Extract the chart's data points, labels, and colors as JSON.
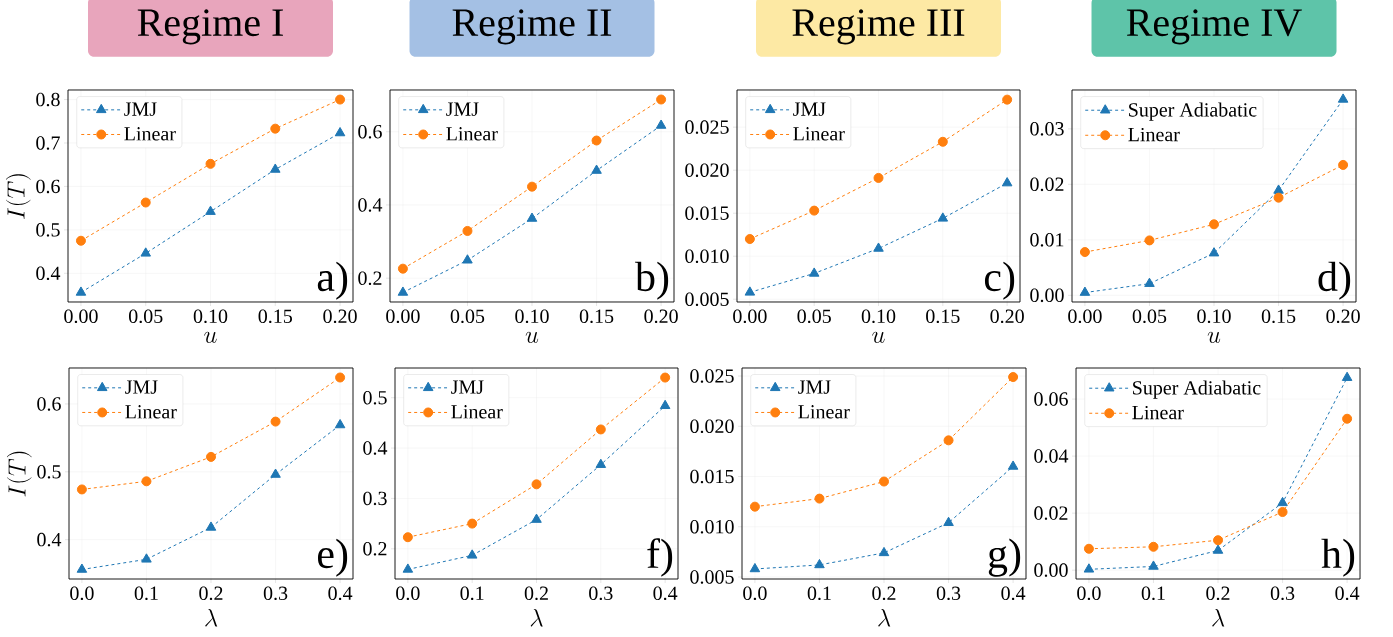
{
  "chart_data": [
    {
      "type": "line",
      "title": "Regime I",
      "xlabel": "u",
      "ylabel": "I(T)",
      "x": [
        0,
        0.05,
        0.1,
        0.15,
        0.2
      ],
      "series": [
        {
          "name": "JMJ",
          "color": "#1f77b4",
          "marker": "triangle",
          "values": [
            0.356,
            0.446,
            0.542,
            0.639,
            0.723
          ]
        },
        {
          "name": "Linear",
          "color": "#ff7f0e",
          "marker": "circle",
          "values": [
            0.475,
            0.563,
            0.652,
            0.733,
            0.8
          ]
        }
      ],
      "xlim": [
        -0.01,
        0.21
      ],
      "ylim": [
        0.334,
        0.822
      ],
      "xticks": [
        {
          "value": 0,
          "label": "0.00"
        },
        0.05,
        {
          "value": 0.1,
          "label": "0.10"
        },
        0.15,
        {
          "value": 0.2,
          "label": "0.20"
        }
      ],
      "yticks": [
        0.4,
        0.5,
        0.6,
        0.7,
        0.8
      ],
      "grid": true,
      "legend": "top left",
      "line_style": "dashed",
      "annotations": [
        "a)"
      ]
    },
    {
      "type": "line",
      "title": "Regime II",
      "xlabel": "u",
      "x": [
        0,
        0.05,
        0.1,
        0.15,
        0.2
      ],
      "series": [
        {
          "name": "JMJ",
          "color": "#1f77b4",
          "marker": "triangle",
          "values": [
            0.161,
            0.249,
            0.363,
            0.494,
            0.617
          ]
        },
        {
          "name": "Linear",
          "color": "#ff7f0e",
          "marker": "circle",
          "values": [
            0.226,
            0.329,
            0.45,
            0.576,
            0.688
          ]
        }
      ],
      "xlim": [
        -0.01,
        0.21
      ],
      "ylim": [
        0.135,
        0.714
      ],
      "xticks": [
        {
          "value": 0,
          "label": "0.00"
        },
        0.05,
        {
          "value": 0.1,
          "label": "0.10"
        },
        0.15,
        {
          "value": 0.2,
          "label": "0.20"
        }
      ],
      "yticks": [
        0.2,
        0.4,
        0.6
      ],
      "grid": true,
      "legend": "top left",
      "line_style": "dashed",
      "annotations": [
        "b)"
      ]
    },
    {
      "type": "line",
      "title": "Regime III",
      "xlabel": "u",
      "x": [
        0,
        0.05,
        0.1,
        0.15,
        0.2
      ],
      "series": [
        {
          "name": "JMJ",
          "color": "#1f77b4",
          "marker": "triangle",
          "values": [
            0.0058,
            0.008,
            0.0109,
            0.0144,
            0.0185
          ]
        },
        {
          "name": "Linear",
          "color": "#ff7f0e",
          "marker": "circle",
          "values": [
            0.012,
            0.0153,
            0.0191,
            0.0233,
            0.0282
          ]
        }
      ],
      "xlim": [
        -0.01,
        0.21
      ],
      "ylim": [
        0.00468,
        0.02932
      ],
      "xticks": [
        {
          "value": 0,
          "label": "0.00"
        },
        0.05,
        {
          "value": 0.1,
          "label": "0.10"
        },
        0.15,
        {
          "value": 0.2,
          "label": "0.20"
        }
      ],
      "yticks": [
        0.005,
        {
          "value": 0.01,
          "label": "0.010"
        },
        0.015,
        {
          "value": 0.02,
          "label": "0.020"
        },
        0.025
      ],
      "grid": true,
      "legend": "top left",
      "line_style": "dashed",
      "annotations": [
        "c)"
      ]
    },
    {
      "type": "line",
      "title": "Regime IV",
      "xlabel": "u",
      "x": [
        0,
        0.05,
        0.1,
        0.15,
        0.2
      ],
      "series": [
        {
          "name": "Super Adiabatic",
          "color": "#1f77b4",
          "marker": "triangle",
          "values": [
            0.0005,
            0.0021,
            0.0076,
            0.0189,
            0.0353
          ]
        },
        {
          "name": "Linear",
          "color": "#ff7f0e",
          "marker": "circle",
          "values": [
            0.0078,
            0.0099,
            0.0128,
            0.0176,
            0.0235
          ]
        }
      ],
      "xlim": [
        -0.01,
        0.21
      ],
      "ylim": [
        -0.0012,
        0.037
      ],
      "xticks": [
        {
          "value": 0,
          "label": "0.00"
        },
        0.05,
        {
          "value": 0.1,
          "label": "0.10"
        },
        0.15,
        {
          "value": 0.2,
          "label": "0.20"
        }
      ],
      "yticks": [
        {
          "value": 0,
          "label": "0.00"
        },
        0.01,
        0.02,
        0.03
      ],
      "grid": true,
      "legend": "top left",
      "line_style": "dashed",
      "annotations": [
        "d)"
      ]
    },
    {
      "type": "line",
      "xlabel": "\\lambda",
      "ylabel": "I(T)",
      "x": [
        0,
        0.1,
        0.2,
        0.3,
        0.4
      ],
      "series": [
        {
          "name": "JMJ",
          "color": "#1f77b4",
          "marker": "triangle",
          "values": [
            0.356,
            0.371,
            0.418,
            0.496,
            0.569
          ]
        },
        {
          "name": "Linear",
          "color": "#ff7f0e",
          "marker": "circle",
          "values": [
            0.474,
            0.486,
            0.522,
            0.574,
            0.639
          ]
        }
      ],
      "xlim": [
        -0.02,
        0.42
      ],
      "ylim": [
        0.342,
        0.653
      ],
      "xticks": [
        {
          "value": 0,
          "label": "0.0"
        },
        0.1,
        0.2,
        0.3,
        0.4
      ],
      "yticks": [
        0.4,
        0.5,
        0.6
      ],
      "grid": true,
      "legend": "top left",
      "line_style": "dashed",
      "annotations": [
        "e)"
      ]
    },
    {
      "type": "line",
      "xlabel": "\\lambda",
      "x": [
        0,
        0.1,
        0.2,
        0.3,
        0.4
      ],
      "series": [
        {
          "name": "JMJ",
          "color": "#1f77b4",
          "marker": "triangle",
          "values": [
            0.159,
            0.187,
            0.258,
            0.367,
            0.484
          ]
        },
        {
          "name": "Linear",
          "color": "#ff7f0e",
          "marker": "circle",
          "values": [
            0.223,
            0.25,
            0.328,
            0.437,
            0.54
          ]
        }
      ],
      "xlim": [
        -0.02,
        0.42
      ],
      "ylim": [
        0.14,
        0.559
      ],
      "xticks": [
        {
          "value": 0,
          "label": "0.0"
        },
        0.1,
        0.2,
        0.3,
        0.4
      ],
      "yticks": [
        0.2,
        0.3,
        0.4,
        0.5
      ],
      "grid": true,
      "legend": "top left",
      "line_style": "dashed",
      "annotations": [
        "f)"
      ]
    },
    {
      "type": "line",
      "xlabel": "\\lambda",
      "x": [
        0,
        0.1,
        0.2,
        0.3,
        0.4
      ],
      "series": [
        {
          "name": "JMJ",
          "color": "#1f77b4",
          "marker": "triangle",
          "values": [
            0.0058,
            0.0062,
            0.0074,
            0.0104,
            0.016
          ]
        },
        {
          "name": "Linear",
          "color": "#ff7f0e",
          "marker": "circle",
          "values": [
            0.012,
            0.0128,
            0.0145,
            0.0186,
            0.0249
          ]
        }
      ],
      "xlim": [
        -0.02,
        0.42
      ],
      "ylim": [
        0.0048,
        0.0258
      ],
      "xticks": [
        {
          "value": 0,
          "label": "0.0"
        },
        0.1,
        0.2,
        0.3,
        0.4
      ],
      "yticks": [
        0.005,
        {
          "value": 0.01,
          "label": "0.010"
        },
        0.015,
        {
          "value": 0.02,
          "label": "0.020"
        },
        0.025
      ],
      "grid": true,
      "legend": "top left",
      "line_style": "dashed",
      "annotations": [
        "g)"
      ]
    },
    {
      "type": "line",
      "xlabel": "\\lambda",
      "x": [
        0,
        0.1,
        0.2,
        0.3,
        0.4
      ],
      "series": [
        {
          "name": "Super Adiabatic",
          "color": "#1f77b4",
          "marker": "triangle",
          "values": [
            0.0003,
            0.0013,
            0.0069,
            0.0236,
            0.0675
          ]
        },
        {
          "name": "Linear",
          "color": "#ff7f0e",
          "marker": "circle",
          "values": [
            0.0075,
            0.0082,
            0.0105,
            0.0204,
            0.0531
          ]
        }
      ],
      "xlim": [
        -0.02,
        0.42
      ],
      "ylim": [
        -0.0031,
        0.0709
      ],
      "xticks": [
        {
          "value": 0,
          "label": "0.0"
        },
        0.1,
        0.2,
        0.3,
        0.4
      ],
      "yticks": [
        {
          "value": 0,
          "label": "0.00"
        },
        0.02,
        0.04,
        0.06
      ],
      "grid": true,
      "legend": "top left",
      "line_style": "dashed",
      "annotations": [
        "h)"
      ]
    }
  ]
}
